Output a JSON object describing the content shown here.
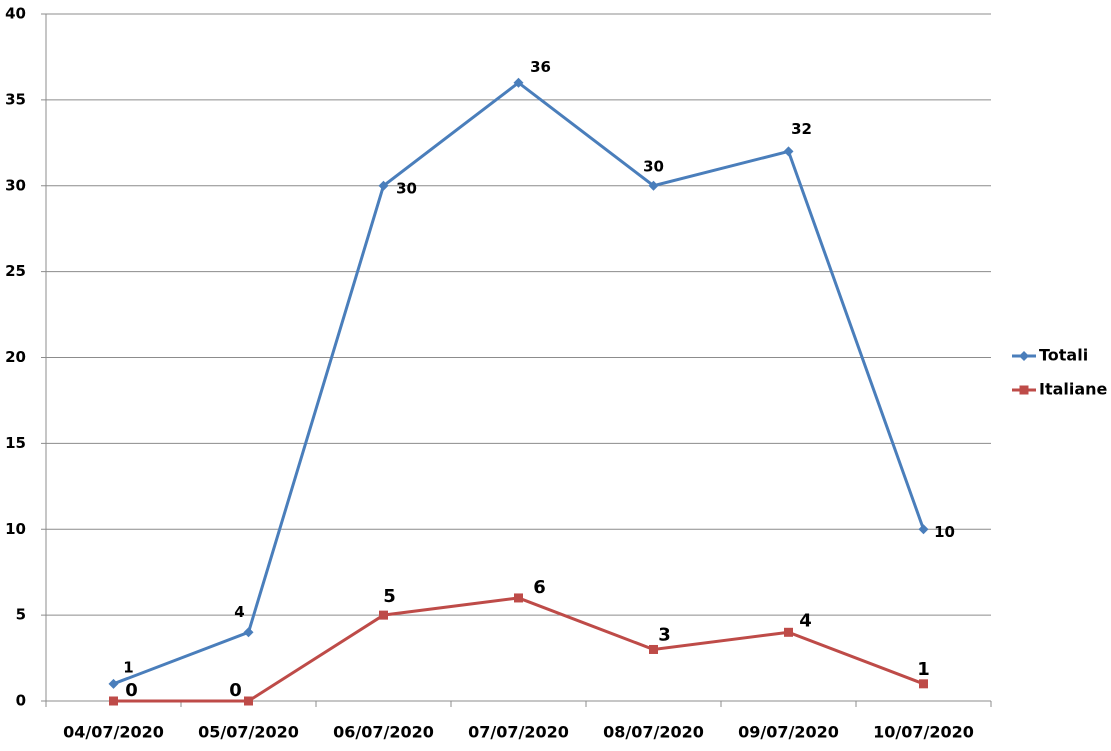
{
  "chart_data": {
    "type": "line",
    "categories": [
      "04/07/2020",
      "05/07/2020",
      "06/07/2020",
      "07/07/2020",
      "08/07/2020",
      "09/07/2020",
      "10/07/2020"
    ],
    "series": [
      {
        "name": "Totali",
        "color": "#4a7ebb",
        "marker": "diamond",
        "values": [
          1,
          4,
          30,
          36,
          30,
          32,
          10
        ]
      },
      {
        "name": "Italiane",
        "color": "#be4b48",
        "marker": "square",
        "values": [
          0,
          0,
          5,
          6,
          3,
          4,
          1
        ]
      }
    ],
    "ylim": [
      0,
      40
    ],
    "yticks": [
      0,
      5,
      10,
      15,
      20,
      25,
      30,
      35,
      40
    ],
    "grid": true,
    "legend": "right"
  }
}
